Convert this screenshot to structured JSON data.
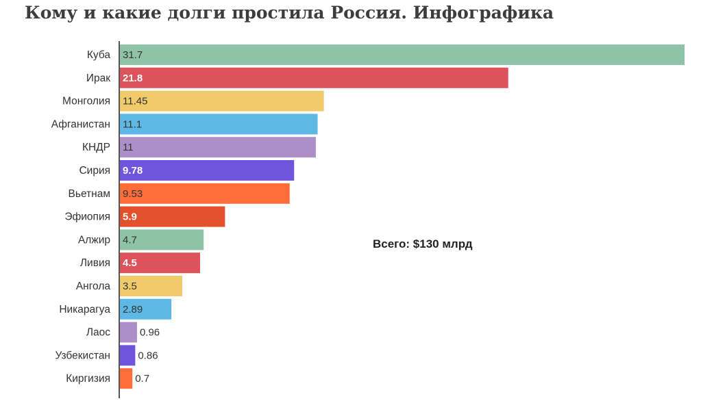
{
  "page": {
    "title": "Кому и какие долги простила Россия. Инфографика"
  },
  "chart_data": {
    "type": "bar",
    "orientation": "horizontal",
    "title": "Кому и какие долги простила Россия. Инфографика",
    "annotation": "Всего: $130 млрд",
    "xlim": [
      0,
      31.7
    ],
    "grid": false,
    "legend": "none",
    "categories": [
      "Куба",
      "Ирак",
      "Монголия",
      "Афганистан",
      "КНДР",
      "Сирия",
      "Вьетнам",
      "Эфиопия",
      "Алжир",
      "Ливия",
      "Ангола",
      "Никарагуа",
      "Лаос",
      "Узбекистан",
      "Киргизия"
    ],
    "values": [
      31.7,
      21.8,
      11.45,
      11.1,
      11,
      9.78,
      9.53,
      5.9,
      4.7,
      4.5,
      3.5,
      2.89,
      0.96,
      0.86,
      0.7
    ],
    "value_labels": [
      "31.7",
      "21.8",
      "11.45",
      "11.1",
      "11",
      "9.78",
      "9.53",
      "5.9",
      "4.7",
      "4.5",
      "3.5",
      "2.89",
      "0.96",
      "0.86",
      "0.7"
    ],
    "colors": [
      "#8fc3a5",
      "#dd535b",
      "#f1cb6b",
      "#5db8e6",
      "#ac8fc9",
      "#6f54de",
      "#ff6d3a",
      "#e2502c",
      "#8fc3a5",
      "#dd535b",
      "#f1cb6b",
      "#5db8e6",
      "#ac8fc9",
      "#6f54de",
      "#ff6d3a"
    ],
    "label_colors": [
      "#333333",
      "#ffffff",
      "#333333",
      "#333333",
      "#333333",
      "#ffffff",
      "#333333",
      "#ffffff",
      "#333333",
      "#ffffff",
      "#333333",
      "#333333",
      "#333333",
      "#333333",
      "#333333"
    ],
    "axis_color": "#555555"
  }
}
